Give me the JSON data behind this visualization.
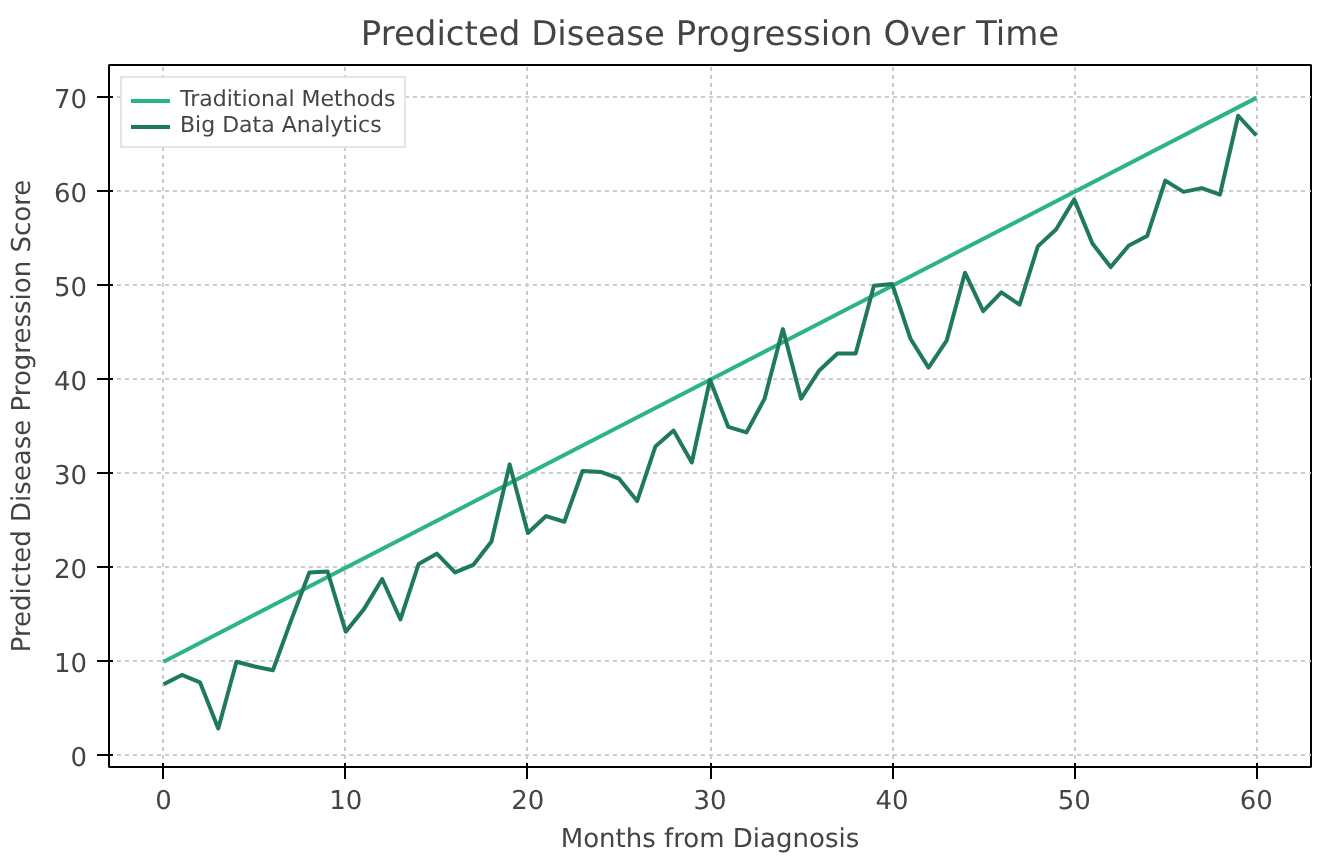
{
  "chart_data": {
    "type": "line",
    "title": "Predicted Disease Progression Over Time",
    "xlabel": "Months from Diagnosis",
    "ylabel": "Predicted Disease Progression Score",
    "xlim": [
      -3,
      63
    ],
    "ylim": [
      -1.2,
      73.5
    ],
    "xticks": [
      0,
      10,
      20,
      30,
      40,
      50,
      60
    ],
    "yticks": [
      0,
      10,
      20,
      30,
      40,
      50,
      60,
      70
    ],
    "grid": true,
    "legend": "top left",
    "marker": "none",
    "line_style": "solid",
    "series": [
      {
        "name": "Traditional Methods",
        "color": "#2cb38a",
        "x": [
          0,
          60
        ],
        "values": [
          10,
          70
        ]
      },
      {
        "name": "Big Data Analytics",
        "color": "#1f7a5a",
        "x": [
          0,
          1,
          2,
          3,
          4,
          5,
          6,
          7,
          8,
          9,
          10,
          11,
          12,
          13,
          14,
          15,
          16,
          17,
          18,
          19,
          20,
          21,
          22,
          23,
          24,
          25,
          26,
          27,
          28,
          29,
          30,
          31,
          32,
          33,
          34,
          35,
          36,
          37,
          38,
          39,
          40,
          41,
          42,
          43,
          44,
          45,
          46,
          47,
          48,
          49,
          50,
          51,
          52,
          53,
          54,
          55,
          56,
          57,
          58,
          59,
          60
        ],
        "values": [
          7.6,
          8.6,
          7.8,
          2.9,
          10,
          9.5,
          9.1,
          14.4,
          19.5,
          19.6,
          13.2,
          15.6,
          18.8,
          14.5,
          20.4,
          21.5,
          19.5,
          20.3,
          22.8,
          31,
          23.7,
          25.5,
          24.9,
          30.3,
          30.2,
          29.5,
          27.1,
          32.9,
          34.6,
          31.2,
          40,
          35,
          34.4,
          38,
          45.4,
          38,
          41,
          42.8,
          42.8,
          50,
          50.2,
          44.4,
          41.3,
          44.2,
          51.4,
          47.3,
          49.3,
          48,
          54.2,
          56,
          59.2,
          54.5,
          52,
          54.3,
          55.3,
          61.2,
          60,
          60.4,
          59.7,
          68.1,
          66
        ]
      }
    ]
  }
}
